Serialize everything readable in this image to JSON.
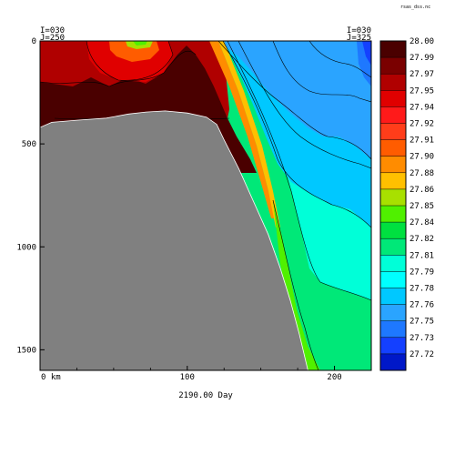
{
  "file_label": "rsas_dss.nc",
  "corner_labels": {
    "left_i": "I=030",
    "left_j": "J=250",
    "right_i": "I=030",
    "right_j": "J=325"
  },
  "xlabel": "2190.00 Day",
  "colors": {
    "land": "#808080",
    "frame": "#000000"
  },
  "chart_data": {
    "type": "heatmap",
    "title": "",
    "xlabel": "2190.00 Day",
    "ylabel": "",
    "x_unit": "km",
    "xlim": [
      0,
      225
    ],
    "ylim": [
      1600,
      0
    ],
    "x_ticks": [
      {
        "value": 0,
        "label": "0 km"
      },
      {
        "value": 100,
        "label": "100"
      },
      {
        "value": 200,
        "label": "200"
      }
    ],
    "y_ticks": [
      {
        "value": 0,
        "label": "0"
      },
      {
        "value": 500,
        "label": "500"
      },
      {
        "value": 1000,
        "label": "1000"
      },
      {
        "value": 1500,
        "label": "1500"
      }
    ],
    "colorbar": {
      "levels": [
        "28.00",
        "27.99",
        "27.97",
        "27.95",
        "27.94",
        "27.92",
        "27.91",
        "27.90",
        "27.88",
        "27.86",
        "27.85",
        "27.84",
        "27.82",
        "27.81",
        "27.79",
        "27.78",
        "27.76",
        "27.75",
        "27.73",
        "27.72"
      ],
      "colors": [
        "#4a0000",
        "#7a0000",
        "#b00000",
        "#e00000",
        "#ff1a1a",
        "#ff3d1a",
        "#ff5c00",
        "#ff8c00",
        "#ffc000",
        "#a8e000",
        "#50f000",
        "#00e040",
        "#00e878",
        "#00ffd8",
        "#00ffff",
        "#00c8ff",
        "#2aa4ff",
        "#1e78ff",
        "#1440ff",
        "#0018c8"
      ],
      "range": [
        27.72,
        28.0
      ]
    },
    "land_mask_profile": [
      {
        "x": 0,
        "depth": 420
      },
      {
        "x": 8,
        "depth": 395
      },
      {
        "x": 25,
        "depth": 385
      },
      {
        "x": 45,
        "depth": 375
      },
      {
        "x": 60,
        "depth": 355
      },
      {
        "x": 72,
        "depth": 345
      },
      {
        "x": 85,
        "depth": 340
      },
      {
        "x": 100,
        "depth": 350
      },
      {
        "x": 113,
        "depth": 370
      },
      {
        "x": 120,
        "depth": 405
      },
      {
        "x": 125,
        "depth": 480
      },
      {
        "x": 135,
        "depth": 620
      },
      {
        "x": 145,
        "depth": 780
      },
      {
        "x": 155,
        "depth": 940
      },
      {
        "x": 163,
        "depth": 1100
      },
      {
        "x": 170,
        "depth": 1260
      },
      {
        "x": 176,
        "depth": 1420
      },
      {
        "x": 182,
        "depth": 1600
      }
    ]
  }
}
